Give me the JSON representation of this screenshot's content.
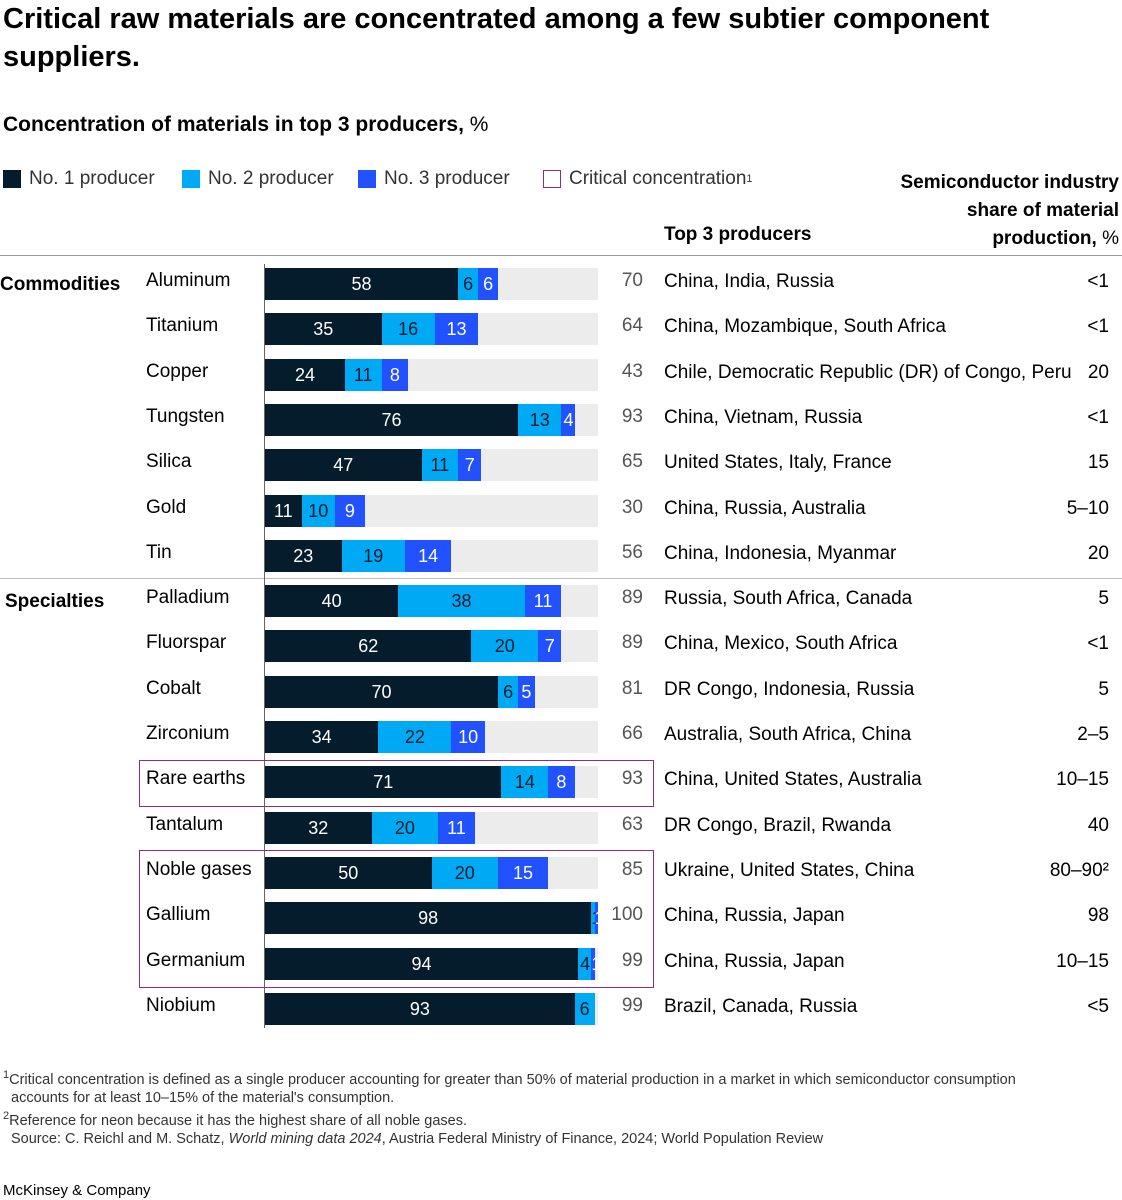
{
  "title": "Critical raw materials are concentrated among a few subtier component suppliers.",
  "subtitle": "Concentration of materials in top 3 producers,",
  "subtitle_unit": " %",
  "legend": {
    "no1": "No. 1 producer",
    "no2": "No. 2 producer",
    "no3": "No. 3 producer",
    "critical": "Critical concentration",
    "critical_sup": "1"
  },
  "headers": {
    "producers": "Top 3 producers",
    "share_line1": "Semiconductor industry",
    "share_line2": "share of material",
    "share_line3": "production,",
    "share_unit": " %"
  },
  "groups": {
    "commodities": "Commodities",
    "specialties": "Specialties"
  },
  "colors": {
    "no1": "#051c2c",
    "no2": "#00a9f4",
    "no3": "#2251ff",
    "critical": "#8e2c82",
    "track": "#ececec"
  },
  "chart_data": {
    "type": "bar",
    "stacked": true,
    "orientation": "horizontal",
    "xlim": [
      0,
      100
    ],
    "series_names": [
      "No. 1 producer",
      "No. 2 producer",
      "No. 3 producer"
    ],
    "rows": [
      {
        "material": "Aluminum",
        "group": "Commodities",
        "values": [
          58,
          6,
          6
        ],
        "total": "70",
        "producers": "China, India, Russia",
        "share": "<1",
        "critical": false
      },
      {
        "material": "Titanium",
        "group": "Commodities",
        "values": [
          35,
          16,
          13
        ],
        "total": "64",
        "producers": "China, Mozambique, South Africa",
        "share": "<1",
        "critical": false
      },
      {
        "material": "Copper",
        "group": "Commodities",
        "values": [
          24,
          11,
          8
        ],
        "total": "43",
        "producers": "Chile, Democratic Republic (DR) of Congo, Peru",
        "share": "20",
        "critical": false
      },
      {
        "material": "Tungsten",
        "group": "Commodities",
        "values": [
          76,
          13,
          4
        ],
        "total": "93",
        "producers": "China, Vietnam, Russia",
        "share": "<1",
        "critical": false
      },
      {
        "material": "Silica",
        "group": "Commodities",
        "values": [
          47,
          11,
          7
        ],
        "total": "65",
        "producers": "United States, Italy, France",
        "share": "15",
        "critical": false
      },
      {
        "material": "Gold",
        "group": "Commodities",
        "values": [
          11,
          10,
          9
        ],
        "total": "30",
        "producers": "China, Russia, Australia",
        "share": "5–10",
        "critical": false
      },
      {
        "material": "Tin",
        "group": "Commodities",
        "values": [
          23,
          19,
          14
        ],
        "total": "56",
        "producers": "China, Indonesia, Myanmar",
        "share": "20",
        "critical": false
      },
      {
        "material": "Palladium",
        "group": "Specialties",
        "values": [
          40,
          38,
          11
        ],
        "total": "89",
        "producers": "Russia, South Africa, Canada",
        "share": "5",
        "critical": false
      },
      {
        "material": "Fluorspar",
        "group": "Specialties",
        "values": [
          62,
          20,
          7
        ],
        "total": "89",
        "producers": "China, Mexico, South Africa",
        "share": "<1",
        "critical": false
      },
      {
        "material": "Cobalt",
        "group": "Specialties",
        "values": [
          70,
          6,
          5
        ],
        "total": "81",
        "producers": "DR Congo, Indonesia, Russia",
        "share": "5",
        "critical": false
      },
      {
        "material": "Zirconium",
        "group": "Specialties",
        "values": [
          34,
          22,
          10
        ],
        "total": "66",
        "producers": "Australia, South Africa, China",
        "share": "2–5",
        "critical": false
      },
      {
        "material": "Rare earths",
        "group": "Specialties",
        "values": [
          71,
          14,
          8
        ],
        "total": "93",
        "producers": "China, United States, Australia",
        "share": "10–15",
        "critical": true
      },
      {
        "material": "Tantalum",
        "group": "Specialties",
        "values": [
          32,
          20,
          11
        ],
        "total": "63",
        "producers": "DR Congo, Brazil, Rwanda",
        "share": "40",
        "critical": false
      },
      {
        "material": "Noble gases",
        "group": "Specialties",
        "values": [
          50,
          20,
          15
        ],
        "total": "85",
        "producers": "Ukraine, United States, China",
        "share": "80–90²",
        "critical": true
      },
      {
        "material": "Gallium",
        "group": "Specialties",
        "values": [
          98,
          1,
          1
        ],
        "total": "100",
        "producers": "China, Russia, Japan",
        "share": "98",
        "critical": true
      },
      {
        "material": "Germanium",
        "group": "Specialties",
        "values": [
          94,
          4,
          1
        ],
        "total": "99",
        "producers": "China, Russia, Japan",
        "share": "10–15",
        "critical": true
      },
      {
        "material": "Niobium",
        "group": "Specialties",
        "values": [
          93,
          6,
          0
        ],
        "total": "99",
        "producers": "Brazil, Canada, Russia",
        "share": "<5",
        "critical": false
      }
    ]
  },
  "footnotes": {
    "fn1_sup": "1",
    "fn1_line1": "Critical concentration is defined as a single producer accounting for greater than 50% of material production in a market in which semiconductor consumption",
    "fn1_line2": "accounts for at least 10–15% of the material's consumption.",
    "fn2_sup": "2",
    "fn2": "Reference for neon because it has the highest share of all noble gases.",
    "source_prefix": "Source: C. Reichl and M. Schatz, ",
    "source_italic": "World mining data 2024",
    "source_suffix": ", Austria Federal Ministry of Finance, 2024; World Population Review"
  },
  "footer": "McKinsey & Company"
}
